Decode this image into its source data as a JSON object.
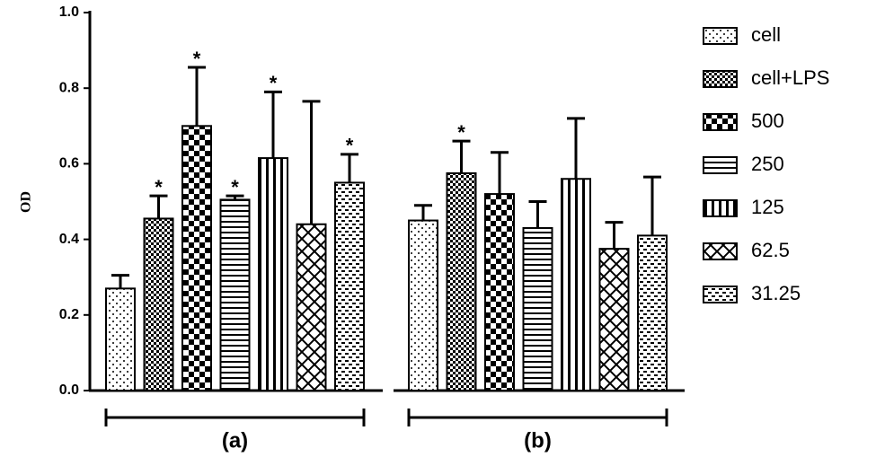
{
  "chart_data": {
    "type": "bar",
    "y_label": "OD",
    "categories": [
      "(a)",
      "(b)"
    ],
    "ylim": [
      0,
      1
    ],
    "yticks": [
      {
        "value": 0,
        "label": "0.0"
      },
      0.2,
      0.4,
      0.6,
      0.8,
      {
        "value": 1,
        "label": "1.0"
      }
    ],
    "series": [
      {
        "name": "cell",
        "color": "#000000",
        "pattern": "dots",
        "values": [
          0.27,
          0.45
        ],
        "errors": [
          0.035,
          0.04
        ],
        "annotations": [
          null,
          null
        ]
      },
      {
        "name": "cell+LPS",
        "color": "#000000",
        "pattern": "check",
        "values": [
          0.455,
          0.575
        ],
        "errors": [
          0.06,
          0.085
        ],
        "annotations": [
          "*",
          "*"
        ]
      },
      {
        "name": "500",
        "color": "#000000",
        "pattern": "bigcheck",
        "values": [
          0.7,
          0.52
        ],
        "errors": [
          0.155,
          0.11
        ],
        "annotations": [
          "*",
          null
        ]
      },
      {
        "name": "250",
        "color": "#000000",
        "pattern": "hlines",
        "values": [
          0.505,
          0.43
        ],
        "errors": [
          0.01,
          0.07
        ],
        "annotations": [
          "*",
          null
        ]
      },
      {
        "name": "125",
        "color": "#000000",
        "pattern": "vlines",
        "values": [
          0.615,
          0.56
        ],
        "errors": [
          0.175,
          0.16
        ],
        "annotations": [
          "*",
          null
        ]
      },
      {
        "name": "62.5",
        "color": "#000000",
        "pattern": "cross",
        "values": [
          0.44,
          0.375
        ],
        "errors": [
          0.325,
          0.07
        ],
        "annotations": [
          null,
          null
        ]
      },
      {
        "name": "31.25",
        "color": "#000000",
        "pattern": "dash",
        "values": [
          0.55,
          0.41
        ],
        "errors": [
          0.075,
          0.155
        ],
        "annotations": [
          "*",
          null
        ]
      }
    ]
  }
}
